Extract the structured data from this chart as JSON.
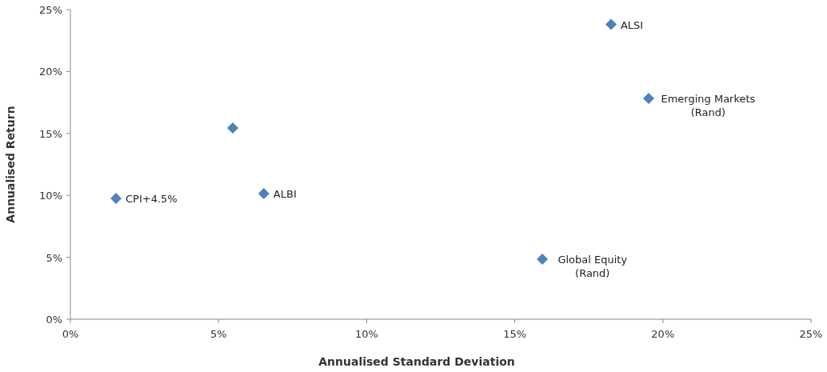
{
  "chart_data": {
    "type": "scatter",
    "xlabel": "Annualised Standard Deviation",
    "ylabel": "Annualised Return",
    "x": [
      18.25,
      19.52,
      5.48,
      1.54,
      6.53,
      15.93
    ],
    "series": [
      {
        "color": "#4f81bd",
        "values": [
          23.8,
          17.83,
          15.44,
          9.75,
          10.14,
          4.84
        ]
      }
    ],
    "marker": "diamond",
    "grid": false,
    "xlim": [
      0,
      25
    ],
    "ylim": [
      0,
      25
    ],
    "xticks": [
      {
        "value": 0,
        "label": "0%"
      },
      {
        "value": 5,
        "label": "5%"
      },
      {
        "value": 10,
        "label": "10%"
      },
      {
        "value": 15,
        "label": "15%"
      },
      {
        "value": 20,
        "label": "20%"
      },
      {
        "value": 25,
        "label": "25%"
      }
    ],
    "yticks": [
      {
        "value": 0,
        "label": "0%"
      },
      {
        "value": 5,
        "label": "5%"
      },
      {
        "value": 10,
        "label": "10%"
      },
      {
        "value": 15,
        "label": "15%"
      },
      {
        "value": 20,
        "label": "20%"
      },
      {
        "value": 25,
        "label": "25%"
      }
    ],
    "annotations": [
      {
        "text": "ALSI",
        "x": 18.25,
        "y": 23.8
      },
      {
        "text": "Emerging Markets\n(Rand)",
        "x": 19.52,
        "y": 17.83
      },
      {
        "text": "CPI+4.5%",
        "x": 1.54,
        "y": 9.75
      },
      {
        "text": "ALBI",
        "x": 6.53,
        "y": 10.14
      },
      {
        "text": "Global Equity\n(Rand)",
        "x": 15.93,
        "y": 4.84
      }
    ]
  }
}
